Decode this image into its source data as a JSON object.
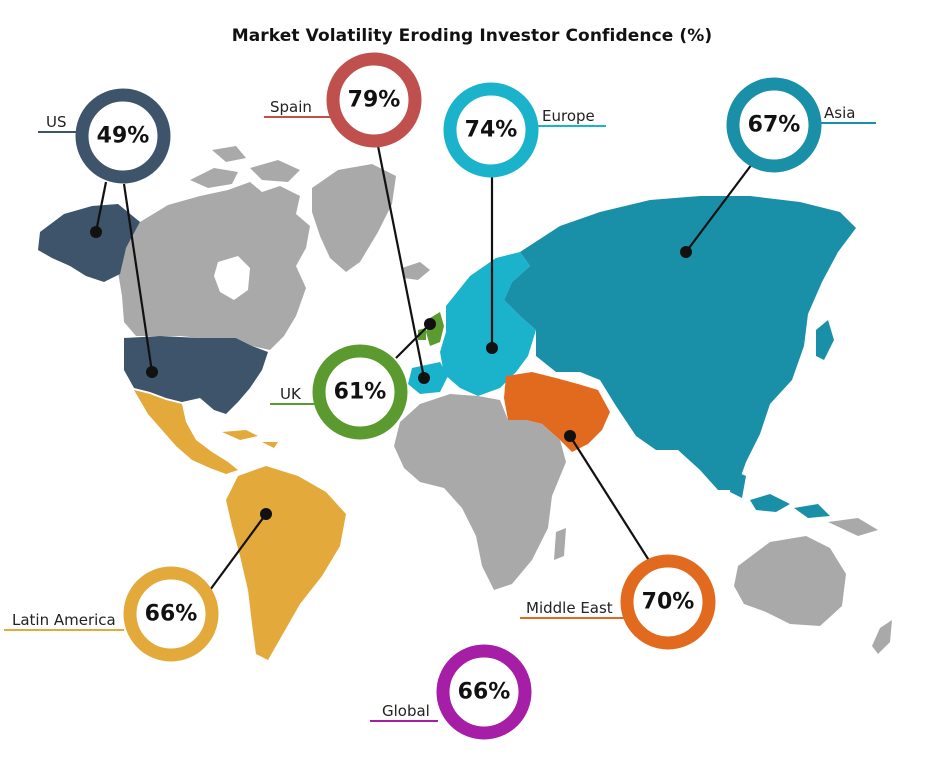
{
  "title": "Market Volatility Eroding Investor Confidence (%)",
  "colors": {
    "land_gray": "#a9a9a9",
    "us": "#3e546a",
    "spain": "#c0504d",
    "europe": "#1bb3cc",
    "asia": "#1a8fa8",
    "uk": "#5b9a2e",
    "latin_america": "#e3a93a",
    "middle_east": "#e26a1e",
    "global": "#a61da6"
  },
  "regions": [
    {
      "key": "us",
      "label": "US",
      "value": "49%",
      "color": "#3e546a"
    },
    {
      "key": "spain",
      "label": "Spain",
      "value": "79%",
      "color": "#c0504d"
    },
    {
      "key": "europe",
      "label": "Europe",
      "value": "74%",
      "color": "#1bb3cc"
    },
    {
      "key": "asia",
      "label": "Asia",
      "value": "67%",
      "color": "#1a8fa8"
    },
    {
      "key": "uk",
      "label": "UK",
      "value": "61%",
      "color": "#5b9a2e"
    },
    {
      "key": "latin_america",
      "label": "Latin America",
      "value": "66%",
      "color": "#e3a93a"
    },
    {
      "key": "middle_east",
      "label": "Middle East",
      "value": "70%",
      "color": "#e26a1e"
    },
    {
      "key": "global",
      "label": "Global",
      "value": "66%",
      "color": "#a61da6"
    }
  ]
}
